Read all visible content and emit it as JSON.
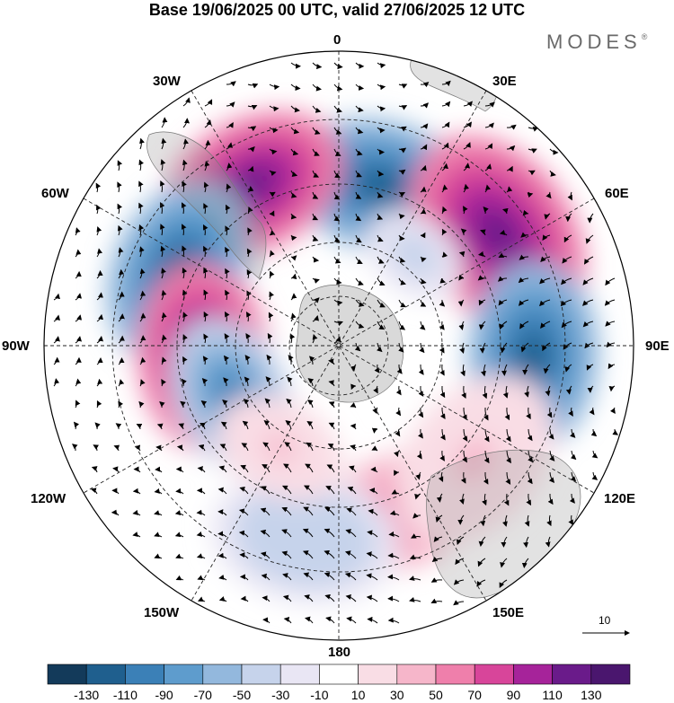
{
  "title": "Base 19/06/2025 00 UTC, valid 27/06/2025 12 UTC",
  "brand": "MODES",
  "brand_mark": "®",
  "longitude_labels": {
    "lon_0": "0",
    "lon_30e": "30E",
    "lon_60e": "60E",
    "lon_90e": "90E",
    "lon_120e": "120E",
    "lon_150e": "150E",
    "lon_180": "180",
    "lon_150w": "150W",
    "lon_120w": "120W",
    "lon_90w": "90W",
    "lon_60w": "60W",
    "lon_30w": "30W"
  },
  "vector_scale_label": "10",
  "colorbar": {
    "ticks": [
      "-130",
      "-110",
      "-90",
      "-70",
      "-50",
      "-30",
      "-10",
      "10",
      "30",
      "50",
      "70",
      "90",
      "110",
      "130"
    ],
    "colors": [
      "#133a5a",
      "#1f5f8e",
      "#3b80b7",
      "#5e9ccd",
      "#93b8dd",
      "#c6d3eb",
      "#e9e6f4",
      "#ffffff",
      "#f9dde5",
      "#f6b6ca",
      "#ef7fab",
      "#d8459a",
      "#a6239a",
      "#6a1b8a",
      "#4a166e"
    ]
  },
  "anomalies": [
    {
      "lon": 15,
      "colat": 28,
      "value": -112,
      "extent": 14
    },
    {
      "lon": 55,
      "colat": 33,
      "value": 128,
      "extent": 16
    },
    {
      "lon": 93,
      "colat": 33,
      "value": -125,
      "extent": 14
    },
    {
      "lon": -28,
      "colat": 31,
      "value": 115,
      "extent": 14
    },
    {
      "lon": -65,
      "colat": 30,
      "value": -118,
      "extent": 14
    },
    {
      "lon": -95,
      "colat": 23,
      "value": 122,
      "extent": 14
    },
    {
      "lon": -115,
      "colat": 20,
      "value": -95,
      "extent": 12
    },
    {
      "lon": 160,
      "colat": 30,
      "value": 65,
      "extent": 12
    },
    {
      "lon": -170,
      "colat": 33,
      "value": -50,
      "extent": 14
    },
    {
      "lon": 130,
      "colat": 30,
      "value": 35,
      "extent": 14
    },
    {
      "lon": -150,
      "colat": 20,
      "value": 30,
      "extent": 10
    },
    {
      "lon": 40,
      "colat": 20,
      "value": -40,
      "extent": 8
    }
  ]
}
